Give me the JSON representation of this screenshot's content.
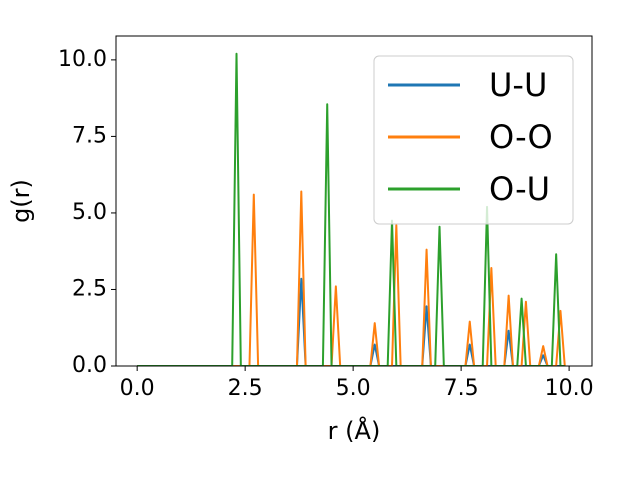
{
  "chart_data": {
    "type": "line",
    "xlabel": "r (Å)",
    "ylabel": "g(r)",
    "x": [
      0,
      0.1,
      0.2,
      0.3,
      0.4,
      0.5,
      0.6,
      0.7,
      0.8,
      0.9,
      1,
      1.1,
      1.2,
      1.3,
      1.4,
      1.5,
      1.6,
      1.7,
      1.8,
      1.9,
      2,
      2.1,
      2.2,
      2.3,
      2.4,
      2.5,
      2.6,
      2.7,
      2.8,
      2.9,
      3,
      3.1,
      3.2,
      3.3,
      3.4,
      3.5,
      3.6,
      3.7,
      3.8,
      3.9,
      4,
      4.1,
      4.2,
      4.3,
      4.4,
      4.5,
      4.6,
      4.7,
      4.8,
      4.9,
      5,
      5.1,
      5.2,
      5.3,
      5.4,
      5.5,
      5.6,
      5.7,
      5.8,
      5.9,
      6,
      6.1,
      6.2,
      6.3,
      6.4,
      6.5,
      6.6,
      6.7,
      6.8,
      6.9,
      7,
      7.1,
      7.2,
      7.3,
      7.4,
      7.5,
      7.6,
      7.7,
      7.8,
      7.9,
      8,
      8.1,
      8.2,
      8.3,
      8.4,
      8.5,
      8.6,
      8.7,
      8.8,
      8.9,
      9,
      9.1,
      9.2,
      9.3,
      9.4,
      9.5,
      9.6,
      9.7,
      9.8,
      9.9
    ],
    "series": [
      {
        "name": "U-U",
        "color": "#1f77b4",
        "values": [
          0,
          0,
          0,
          0,
          0,
          0,
          0,
          0,
          0,
          0,
          0,
          0,
          0,
          0,
          0,
          0,
          0,
          0,
          0,
          0,
          0,
          0,
          0,
          0,
          0,
          0,
          0,
          0,
          0,
          0,
          0,
          0,
          0,
          0,
          0,
          0,
          0,
          0,
          2.85,
          0,
          0,
          0,
          0,
          0,
          0,
          0,
          0,
          0,
          0,
          0,
          0,
          0,
          0,
          0,
          0,
          0.7,
          0,
          0,
          0,
          0,
          0,
          0,
          0,
          0,
          0,
          0,
          0,
          1.95,
          0,
          0,
          0,
          0,
          0,
          0,
          0,
          0,
          0,
          0.7,
          0,
          0,
          0,
          0,
          0,
          0,
          0,
          0,
          1.15,
          0,
          0,
          0,
          0,
          0,
          0,
          0,
          0.35,
          0,
          0,
          0,
          0,
          0
        ]
      },
      {
        "name": "O-O",
        "color": "#ff7f0e",
        "values": [
          0,
          0,
          0,
          0,
          0,
          0,
          0,
          0,
          0,
          0,
          0,
          0,
          0,
          0,
          0,
          0,
          0,
          0,
          0,
          0,
          0,
          0,
          0,
          0,
          0,
          0,
          0,
          5.6,
          0,
          0,
          0,
          0,
          0,
          0,
          0,
          0,
          0,
          0,
          5.7,
          0,
          0,
          0,
          0,
          0,
          0,
          0,
          2.6,
          0,
          0,
          0,
          0,
          0,
          0,
          0,
          0,
          1.4,
          0,
          0,
          0,
          0,
          4.6,
          0,
          0,
          0,
          0,
          0,
          0,
          3.8,
          0,
          0,
          0,
          0,
          0,
          0,
          0,
          0,
          0,
          1.45,
          0,
          0,
          0,
          0,
          3.2,
          0,
          0,
          0,
          2.3,
          0,
          0,
          0,
          2.1,
          0,
          0,
          0,
          0.65,
          0,
          0,
          0,
          1.8,
          0
        ]
      },
      {
        "name": "O-U",
        "color": "#2ca02c",
        "values": [
          0,
          0,
          0,
          0,
          0,
          0,
          0,
          0,
          0,
          0,
          0,
          0,
          0,
          0,
          0,
          0,
          0,
          0,
          0,
          0,
          0,
          0,
          0,
          10.2,
          0,
          0,
          0,
          0,
          0,
          0,
          0,
          0,
          0,
          0,
          0,
          0,
          0,
          0,
          0,
          0,
          0,
          0,
          0,
          0,
          8.55,
          0,
          0,
          0,
          0,
          0,
          0,
          0,
          0,
          0,
          0,
          0,
          0,
          0,
          0,
          4.75,
          0,
          0,
          0,
          0,
          0,
          0,
          0,
          0,
          0,
          0,
          4.55,
          0,
          0,
          0,
          0,
          0,
          0,
          0,
          0,
          0,
          0,
          5.2,
          0,
          0,
          0,
          0,
          0,
          0,
          0,
          2.2,
          0,
          0,
          0,
          0,
          0,
          0,
          0,
          3.65,
          0,
          0
        ]
      }
    ],
    "xlim": [
      -0.49,
      10.53
    ],
    "ylim": [
      0,
      10.78
    ],
    "xticks": [
      {
        "value": 0,
        "label": "0.0"
      },
      {
        "value": 2.5,
        "label": "2.5"
      },
      {
        "value": 5,
        "label": "5.0"
      },
      {
        "value": 7.5,
        "label": "7.5"
      },
      {
        "value": 10,
        "label": "10.0"
      }
    ],
    "yticks": [
      {
        "value": 0,
        "label": "0.0"
      },
      {
        "value": 2.5,
        "label": "2.5"
      },
      {
        "value": 5,
        "label": "5.0"
      },
      {
        "value": 7.5,
        "label": "7.5"
      },
      {
        "value": 10,
        "label": "10.0"
      }
    ],
    "legend": "upper right"
  }
}
